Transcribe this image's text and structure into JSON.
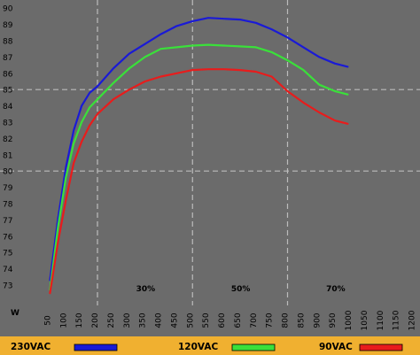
{
  "chart_data": {
    "type": "line",
    "title": "",
    "xlabel": "W",
    "ylabel": "",
    "xlim": [
      0,
      1200
    ],
    "ylim": [
      72.5,
      90
    ],
    "x_ticks": [
      50,
      100,
      150,
      200,
      250,
      300,
      350,
      400,
      450,
      500,
      550,
      600,
      650,
      700,
      750,
      800,
      850,
      900,
      950,
      1000,
      1050,
      1100,
      1150,
      1200
    ],
    "y_ticks": [
      73,
      74,
      75,
      76,
      77,
      78,
      79,
      80,
      81,
      82,
      83,
      84,
      85,
      86,
      87,
      88,
      89,
      90
    ],
    "grid": "dashed reference lines at x = 200, 500, 800 W and y = 80, 85 %",
    "annotations": [
      "30%",
      "50%",
      "70%"
    ],
    "legend_position": "bottom",
    "series": [
      {
        "name": "230VAC",
        "color": "#1a1ad6",
        "x": [
          50,
          75,
          100,
          125,
          150,
          175,
          200,
          250,
          300,
          350,
          400,
          450,
          500,
          550,
          600,
          650,
          700,
          750,
          800,
          850,
          900,
          950,
          990
        ],
        "y": [
          73.3,
          77.0,
          80.2,
          82.5,
          84.0,
          84.8,
          85.2,
          86.3,
          87.2,
          87.8,
          88.4,
          88.9,
          89.2,
          89.4,
          89.35,
          89.3,
          89.1,
          88.7,
          88.2,
          87.6,
          87.0,
          86.6,
          86.4
        ]
      },
      {
        "name": "120VAC",
        "color": "#3ae03a",
        "x": [
          50,
          75,
          100,
          125,
          150,
          175,
          200,
          250,
          300,
          350,
          400,
          450,
          500,
          550,
          600,
          650,
          700,
          750,
          800,
          850,
          900,
          950,
          990
        ],
        "y": [
          72.7,
          76.5,
          79.6,
          81.7,
          83.0,
          83.9,
          84.4,
          85.4,
          86.3,
          87.0,
          87.5,
          87.6,
          87.7,
          87.75,
          87.7,
          87.65,
          87.6,
          87.3,
          86.8,
          86.2,
          85.3,
          84.9,
          84.7
        ]
      },
      {
        "name": "90VAC",
        "color": "#e81c1c",
        "x": [
          50,
          75,
          100,
          125,
          150,
          175,
          200,
          250,
          300,
          350,
          400,
          450,
          500,
          550,
          600,
          650,
          700,
          750,
          800,
          850,
          900,
          950,
          990
        ],
        "y": [
          72.5,
          75.6,
          78.2,
          80.5,
          81.8,
          82.8,
          83.5,
          84.4,
          85.0,
          85.5,
          85.8,
          86.0,
          86.2,
          86.25,
          86.25,
          86.2,
          86.1,
          85.8,
          84.9,
          84.2,
          83.6,
          83.1,
          82.9
        ]
      }
    ]
  },
  "colors": {
    "plot_background": "#6b6b6b",
    "grid": "#bcbcbc",
    "legend_bar": "#f0b030"
  }
}
